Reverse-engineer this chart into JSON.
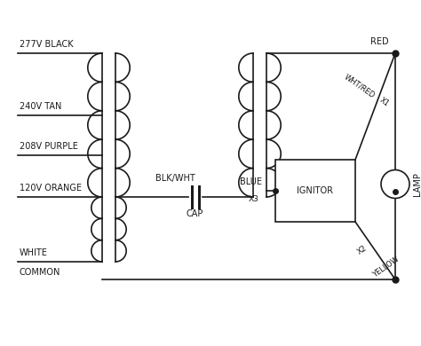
{
  "bg_color": "#ffffff",
  "line_color": "#1a1a1a",
  "text_color": "#1a1a1a",
  "labels": {
    "v277": "277V BLACK",
    "v240": "240V TAN",
    "v208": "208V PURPLE",
    "v120": "120V ORANGE",
    "white": "WHITE",
    "common": "COMMON",
    "blkwht": "BLK/WHT",
    "cap": "CAP",
    "blue": "BLUE",
    "x3": "X3",
    "x1": "X1",
    "x2": "X2",
    "whtred": "WHT/RED",
    "red": "RED",
    "yellow": "YELLOW",
    "ignitor": "IGNITOR",
    "lamp": "LAMP"
  },
  "font_size": 7.0
}
